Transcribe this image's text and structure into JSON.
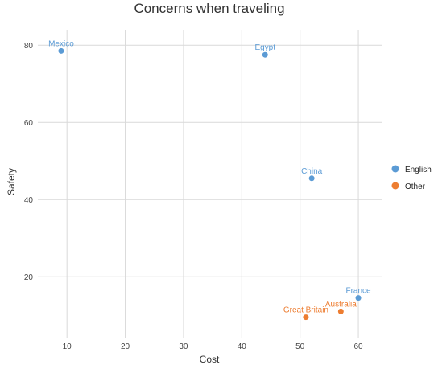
{
  "chart_data": {
    "type": "scatter",
    "title": "Concerns when traveling",
    "xlabel": "Cost",
    "ylabel": "Safety",
    "xlim": [
      5,
      64
    ],
    "ylim": [
      4,
      84
    ],
    "x_ticks": [
      10,
      20,
      30,
      40,
      50,
      60
    ],
    "y_ticks": [
      20,
      40,
      60,
      80
    ],
    "grid": true,
    "legend_position": "right",
    "series": [
      {
        "name": "English",
        "color": "#5b9bd5",
        "points": [
          {
            "label": "Mexico",
            "x": 9,
            "y": 78.5
          },
          {
            "label": "Egypt",
            "x": 44,
            "y": 77.5
          },
          {
            "label": "China",
            "x": 52,
            "y": 45.5
          },
          {
            "label": "France",
            "x": 60,
            "y": 14.5
          }
        ]
      },
      {
        "name": "Other",
        "color": "#ed7d31",
        "points": [
          {
            "label": "Great Britain",
            "x": 51,
            "y": 9.5
          },
          {
            "label": "Australia",
            "x": 57,
            "y": 11
          }
        ]
      }
    ]
  }
}
